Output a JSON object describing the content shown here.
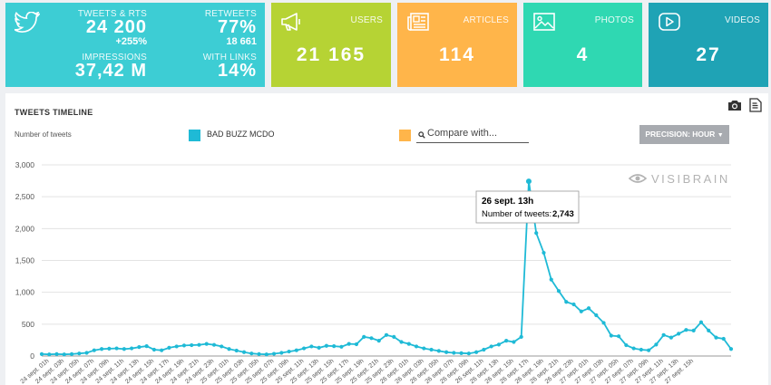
{
  "tiles": {
    "tweets": {
      "label": "TWEETS & RTS",
      "value": "24 200",
      "change": "+255%",
      "impressions_label": "IMPRESSIONS",
      "impressions_value": "37,42 M",
      "retweets_label": "RETWEETS",
      "retweets_pct": "77%",
      "retweets_value": "18 661",
      "links_label": "WITH LINKS",
      "links_value": "14%",
      "icon": "twitter-icon"
    },
    "users": {
      "label": "USERS",
      "value": "21 165",
      "icon": "megaphone-icon"
    },
    "articles": {
      "label": "ARTICLES",
      "value": "114",
      "icon": "newspaper-icon"
    },
    "photos": {
      "label": "PHOTOS",
      "value": "4",
      "icon": "photo-icon"
    },
    "videos": {
      "label": "VIDEOS",
      "value": "27",
      "icon": "play-icon"
    }
  },
  "colors": {
    "tweets": "#3dcdd4",
    "users": "#b6d334",
    "articles": "#ffb54a",
    "photos": "#2fd8b2",
    "videos": "#1fa3b5",
    "series": "#1fbad6",
    "compare": "#ffb54a"
  },
  "timeline": {
    "title": "TWEETS TIMELINE",
    "y_axis_label": "Number of tweets",
    "series_label": "BAD BUZZ MCDO",
    "compare_placeholder": "Compare with...",
    "precision_label": "PRECISION: HOUR",
    "watermark": "VISIBRAIN",
    "tooltip": {
      "title": "26 sept. 13h",
      "label": "Number of tweets:",
      "value": "2,743"
    }
  },
  "chart_data": {
    "type": "line",
    "title": "",
    "xlabel": "",
    "ylabel": "Number of tweets",
    "ylim": [
      0,
      3000
    ],
    "yticks": [
      0,
      500,
      1000,
      1500,
      2000,
      2500,
      3000
    ],
    "ytick_labels": [
      "0",
      "500",
      "1,000",
      "1,500",
      "2,000",
      "2,500",
      "3,000"
    ],
    "grid": true,
    "x_tick_labels": [
      "24 sept. 01h",
      "24 sept. 03h",
      "24 sept. 05h",
      "24 sept. 07h",
      "24 sept. 09h",
      "24 sept. 11h",
      "24 sept. 13h",
      "24 sept. 15h",
      "24 sept. 17h",
      "24 sept. 19h",
      "24 sept. 21h",
      "24 sept. 23h",
      "25 sept. 01h",
      "25 sept. 03h",
      "25 sept. 05h",
      "25 sept. 07h",
      "25 sept. 09h",
      "25 sept. 11h",
      "25 sept. 13h",
      "25 sept. 15h",
      "25 sept. 17h",
      "25 sept. 19h",
      "25 sept. 21h",
      "25 sept. 23h",
      "26 sept. 01h",
      "26 sept. 03h",
      "26 sept. 05h",
      "26 sept. 07h",
      "26 sept. 09h",
      "26 sept. 11h",
      "26 sept. 13h",
      "26 sept. 15h",
      "26 sept. 17h",
      "26 sept. 19h",
      "26 sept. 21h",
      "26 sept. 23h",
      "27 sept. 01h",
      "27 sept. 03h",
      "27 sept. 05h",
      "27 sept. 07h",
      "27 sept. 09h",
      "27 sept. 11h",
      "27 sept. 13h",
      "27 sept. 15h"
    ],
    "series": [
      {
        "name": "BAD BUZZ MCDO",
        "values": [
          30,
          25,
          30,
          25,
          30,
          40,
          50,
          90,
          110,
          115,
          120,
          110,
          120,
          140,
          155,
          100,
          90,
          130,
          150,
          165,
          170,
          175,
          190,
          175,
          150,
          110,
          85,
          60,
          40,
          30,
          25,
          35,
          50,
          70,
          90,
          120,
          150,
          130,
          160,
          155,
          145,
          190,
          185,
          300,
          280,
          240,
          330,
          300,
          220,
          190,
          150,
          120,
          100,
          80,
          60,
          50,
          45,
          40,
          60,
          100,
          150,
          180,
          240,
          220,
          300,
          2743,
          1930,
          1620,
          1200,
          1020,
          850,
          810,
          700,
          750,
          640,
          520,
          320,
          310,
          170,
          120,
          100,
          90,
          180,
          330,
          290,
          350,
          410,
          400,
          530,
          400,
          290,
          270,
          110
        ]
      }
    ]
  }
}
